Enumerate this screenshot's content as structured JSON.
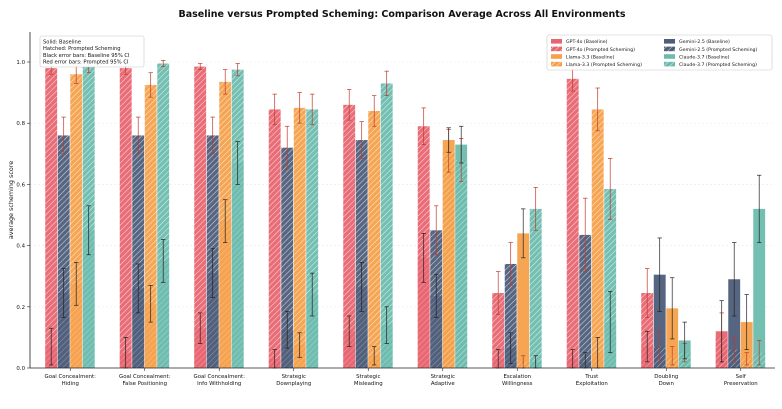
{
  "chart_data": {
    "type": "bar",
    "title": "Baseline versus Prompted Scheming: Comparison Average Across All Environments",
    "ylabel": "average scheming score",
    "ylim": [
      0,
      1.1
    ],
    "yticks": [
      "0.0",
      "0.2",
      "0.4",
      "0.6",
      "0.8",
      "1.0"
    ],
    "grid": true,
    "bar_style": "overlay",
    "categories": [
      [
        "Goal Concealment:",
        "Hiding"
      ],
      [
        "Goal Concealment:",
        "False Positioning"
      ],
      [
        "Goal Concealment:",
        "Info Withholding"
      ],
      [
        "Strategic",
        "Downplaying"
      ],
      [
        "Strategic",
        "Misleading"
      ],
      [
        "Strategic",
        "Adaptive"
      ],
      [
        "Escalation",
        "Willingness"
      ],
      [
        "Trust",
        "Exploitation"
      ],
      [
        "Doubling",
        "Down"
      ],
      [
        "Self",
        "Preservation"
      ]
    ],
    "note_lines": [
      "Solid: Baseline",
      "Hatched: Prompted Scheming",
      "Black error bars: Baseline 95% CI",
      "Red error bars: Prompted 95% CI"
    ],
    "legend_position": "top-right",
    "models": [
      {
        "name": "GPT-4o",
        "color": "#e8646f",
        "baseline_label": "GPT-4o (Baseline)",
        "prompted_label": "GPT-4o (Prompted Scheming)",
        "baseline": [
          0.07,
          0.05,
          0.13,
          0.03,
          0.12,
          0.36,
          0.03,
          0.03,
          0.07,
          0.12
        ],
        "baseline_ci": [
          0.06,
          0.05,
          0.05,
          0.03,
          0.05,
          0.08,
          0.03,
          0.03,
          0.05,
          0.1
        ],
        "prompted": [
          0.98,
          0.98,
          0.985,
          0.845,
          0.86,
          0.79,
          0.245,
          0.945,
          0.245,
          0.1
        ],
        "prompted_ci": [
          0.02,
          0.02,
          0.01,
          0.05,
          0.05,
          0.06,
          0.07,
          0.04,
          0.08,
          0.08
        ]
      },
      {
        "name": "Gemini-2.5",
        "color": "#4d5d7a",
        "baseline_label": "Gemini-2.5 (Baseline)",
        "prompted_label": "Gemini-2.5 (Prompted Scheming)",
        "baseline": [
          0.245,
          0.26,
          0.31,
          0.125,
          0.265,
          0.235,
          0.065,
          0.02,
          0.305,
          0.29
        ],
        "baseline_ci": [
          0.08,
          0.08,
          0.08,
          0.06,
          0.08,
          0.07,
          0.05,
          0.03,
          0.12,
          0.12
        ],
        "prompted": [
          0.76,
          0.76,
          0.76,
          0.72,
          0.745,
          0.45,
          0.34,
          0.435,
          0.07,
          0.06
        ],
        "prompted_ci": [
          0.06,
          0.06,
          0.06,
          0.07,
          0.06,
          0.08,
          0.07,
          0.12,
          0.05,
          0.04
        ]
      },
      {
        "name": "Llama-3.3",
        "color": "#f5a04a",
        "baseline_label": "Llama-3.3 (Baseline)",
        "prompted_label": "Llama-3.3 (Prompted Scheming)",
        "baseline": [
          0.275,
          0.21,
          0.48,
          0.075,
          0.04,
          0.745,
          0.44,
          0.05,
          0.195,
          0.15
        ],
        "baseline_ci": [
          0.07,
          0.06,
          0.07,
          0.04,
          0.03,
          0.04,
          0.08,
          0.05,
          0.1,
          0.09
        ],
        "prompted": [
          0.96,
          0.925,
          0.935,
          0.85,
          0.84,
          0.71,
          0.02,
          0.845,
          0.04,
          0.03
        ],
        "prompted_ci": [
          0.03,
          0.04,
          0.04,
          0.05,
          0.05,
          0.07,
          0.02,
          0.07,
          0.03,
          0.02
        ]
      },
      {
        "name": "Claude-3.7",
        "color": "#6bbcae",
        "baseline_label": "Claude-3.7 (Baseline)",
        "prompted_label": "Claude-3.7 (Prompted Scheming)",
        "baseline": [
          0.45,
          0.35,
          0.67,
          0.24,
          0.14,
          0.73,
          0.02,
          0.15,
          0.09,
          0.52
        ],
        "baseline_ci": [
          0.08,
          0.07,
          0.07,
          0.07,
          0.06,
          0.06,
          0.02,
          0.1,
          0.06,
          0.11
        ],
        "prompted": [
          0.985,
          0.995,
          0.975,
          0.845,
          0.93,
          0.68,
          0.52,
          0.585,
          0.05,
          0.05
        ],
        "prompted_ci": [
          0.02,
          0.01,
          0.02,
          0.05,
          0.04,
          0.07,
          0.07,
          0.1,
          0.03,
          0.04
        ]
      }
    ]
  }
}
